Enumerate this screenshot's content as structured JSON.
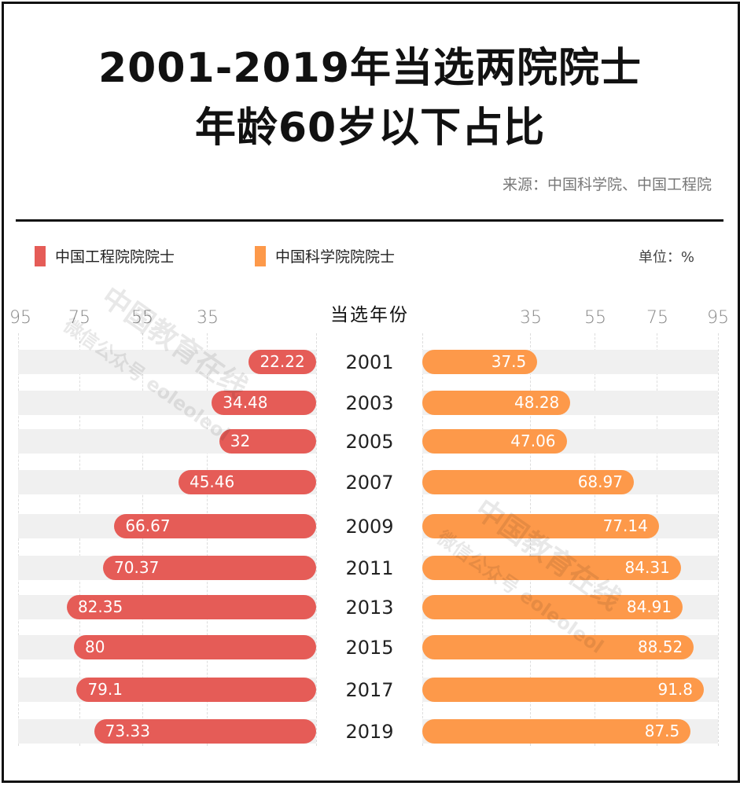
{
  "header": {
    "title_line1": "2001-2019年当选两院院士",
    "title_line2": "年龄60岁以下占比",
    "source": "来源：中国科学院、中国工程院"
  },
  "legend": {
    "items": [
      {
        "label": "中国工程院院院士",
        "color": "#e55c57"
      },
      {
        "label": "中国科学院院院士",
        "color": "#fd994a"
      }
    ],
    "unit": "单位：%"
  },
  "axis": {
    "center_title": "当选年份",
    "left_ticks": [
      "95",
      "75",
      "55",
      "35"
    ],
    "right_ticks": [
      "35",
      "55",
      "75",
      "95"
    ]
  },
  "watermark": {
    "line1": "中国教育在线",
    "line2": "微信公众号 eoleoleol"
  },
  "chart_data": {
    "type": "bar",
    "title": "2001-2019年当选两院院士年龄60岁以下占比",
    "subtitle": "来源：中国科学院、中国工程院",
    "xlabel": "",
    "ylabel": "当选年份",
    "unit": "%",
    "orientation": "horizontal-butterfly",
    "categories": [
      "2001",
      "2003",
      "2005",
      "2007",
      "2009",
      "2011",
      "2013",
      "2015",
      "2017",
      "2019"
    ],
    "series": [
      {
        "name": "中国工程院院院士",
        "color": "#e55c57",
        "side": "left",
        "values": [
          22.22,
          34.48,
          32,
          45.46,
          66.67,
          70.37,
          82.35,
          80,
          79.1,
          73.33
        ]
      },
      {
        "name": "中国科学院院院士",
        "color": "#fd994a",
        "side": "right",
        "values": [
          37.5,
          48.28,
          47.06,
          68.97,
          77.14,
          84.31,
          84.91,
          88.52,
          91.8,
          87.5
        ]
      }
    ],
    "ticks": [
      35,
      55,
      75,
      95
    ],
    "grid": true,
    "legend_position": "top"
  }
}
